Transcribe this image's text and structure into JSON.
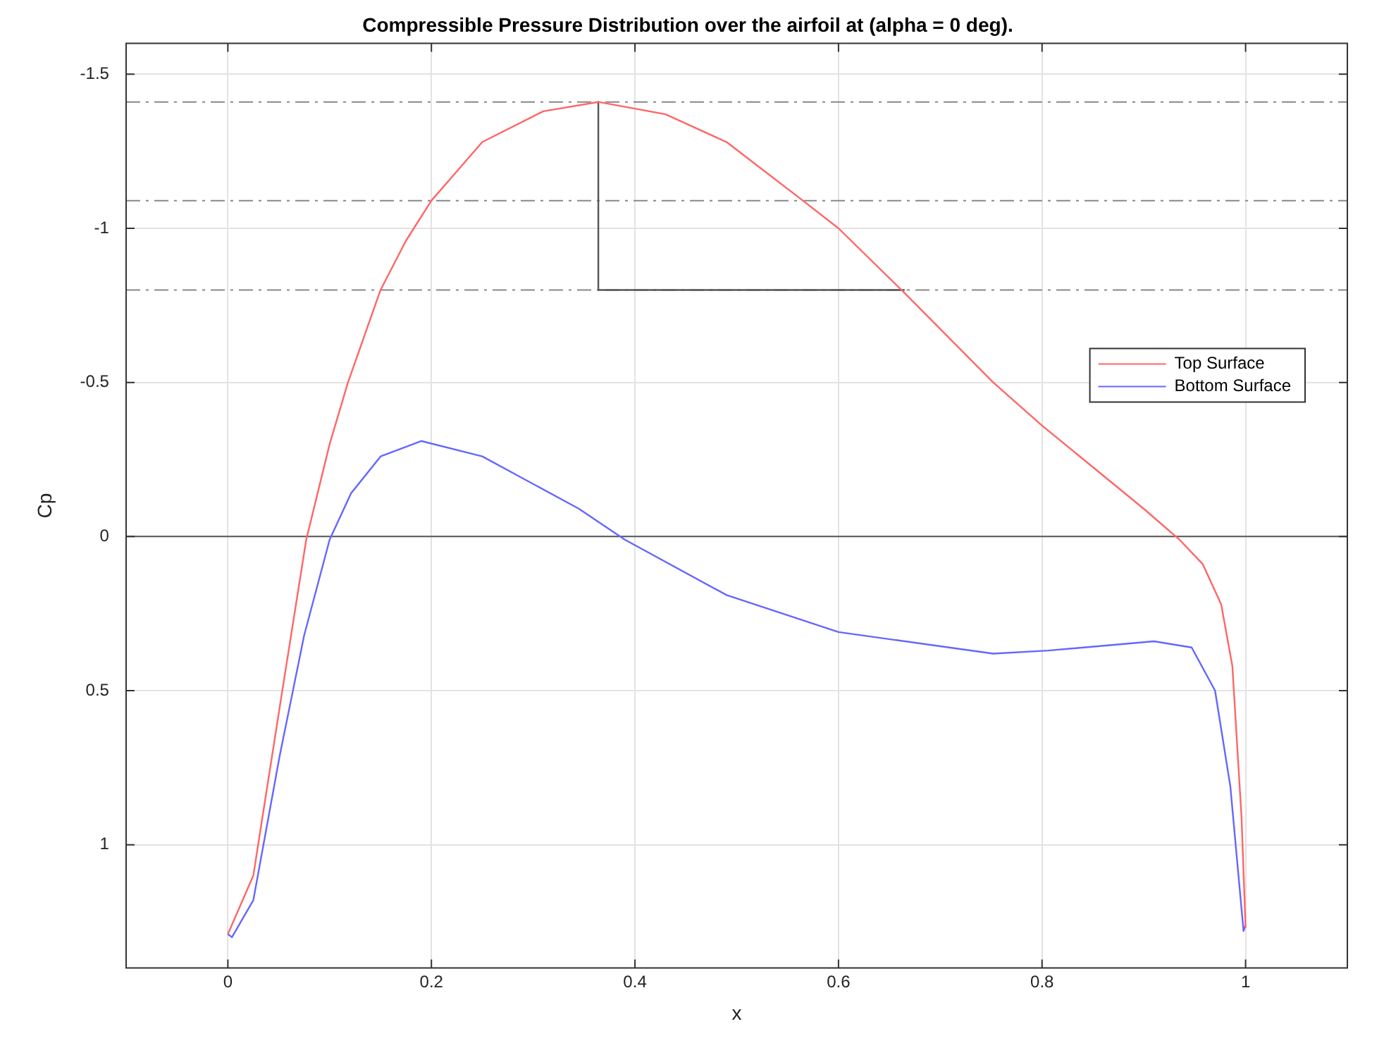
{
  "chart_data": {
    "type": "line",
    "title": "Compressible Pressure Distribution over the airfoil at (alpha = 0 deg).",
    "xlabel": "x",
    "ylabel": "Cp",
    "xlim": [
      -0.1,
      1.1
    ],
    "xticks": [
      0,
      0.2,
      0.4,
      0.6,
      0.8,
      1
    ],
    "ylim": [
      1.4,
      -1.6
    ],
    "yticks": [
      -1.5,
      -1,
      -0.5,
      0,
      0.5,
      1
    ],
    "grid": true,
    "legend": "right",
    "marker": "none",
    "line_style": "solid",
    "series": [
      {
        "name": "Top Surface",
        "color": "#ff6666",
        "x": [
          0,
          0.025,
          0.034,
          0.053,
          0.077,
          0.1,
          0.118,
          0.15,
          0.175,
          0.2,
          0.25,
          0.31,
          0.364,
          0.43,
          0.49,
          0.565,
          0.6,
          0.665,
          0.752,
          0.8,
          0.9,
          0.935,
          0.958,
          0.976,
          0.987,
          0.996,
          1.0
        ],
        "values": [
          1.29,
          1.1,
          0.91,
          0.51,
          0.01,
          -0.3,
          -0.5,
          -0.8,
          -0.96,
          -1.09,
          -1.28,
          -1.38,
          -1.41,
          -1.37,
          -1.28,
          -1.09,
          -1.0,
          -0.79,
          -0.5,
          -0.36,
          -0.09,
          0.01,
          0.09,
          0.22,
          0.42,
          0.91,
          1.27
        ]
      },
      {
        "name": "Bottom Surface",
        "color": "#6666ff",
        "x": [
          0,
          0.004,
          0.025,
          0.051,
          0.075,
          0.1,
          0.121,
          0.15,
          0.19,
          0.25,
          0.345,
          0.39,
          0.49,
          0.6,
          0.752,
          0.806,
          0.91,
          0.947,
          0.97,
          0.985,
          0.998,
          1.0
        ],
        "values": [
          1.29,
          1.3,
          1.18,
          0.71,
          0.32,
          0.01,
          -0.14,
          -0.26,
          -0.31,
          -0.26,
          -0.09,
          0.01,
          0.19,
          0.31,
          0.38,
          0.37,
          0.34,
          0.36,
          0.5,
          0.81,
          1.28,
          1.26
        ]
      },
      {
        "color": "#555555",
        "x": [
          0.364,
          0.364,
          0.665
        ],
        "values": [
          -1.41,
          -0.8,
          -0.8
        ]
      }
    ],
    "ref_lines": [
      {
        "axis": "y",
        "value": -1.41,
        "color": "#888888",
        "line_style": "dashed"
      },
      {
        "axis": "y",
        "value": -1.09,
        "color": "#888888",
        "line_style": "dashed"
      },
      {
        "axis": "y",
        "value": -0.8,
        "color": "#888888",
        "line_style": "dashed"
      },
      {
        "axis": "y",
        "value": 0,
        "color": "#555555",
        "line_style": "solid"
      }
    ]
  }
}
